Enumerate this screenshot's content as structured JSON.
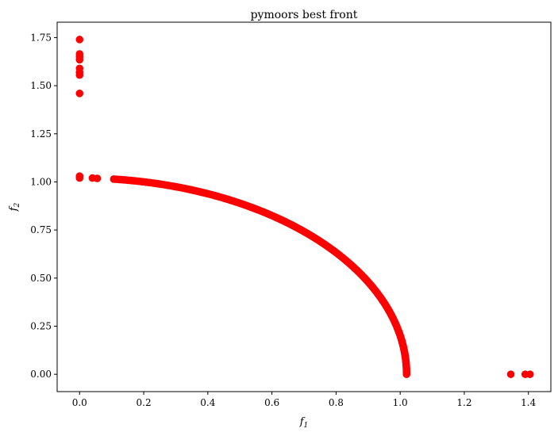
{
  "chart_data": {
    "type": "scatter",
    "title": "pymoors best front",
    "xlabel_main": "f",
    "xlabel_sub": "1",
    "ylabel_main": "f",
    "ylabel_sub": "2",
    "xlim": [
      -0.07,
      1.47
    ],
    "ylim": [
      -0.09,
      1.83
    ],
    "x_ticks": [
      0.0,
      0.2,
      0.4,
      0.6,
      0.8,
      1.0,
      1.2,
      1.4
    ],
    "x_tick_labels": [
      "0.0",
      "0.2",
      "0.4",
      "0.6",
      "0.8",
      "1.0",
      "1.2",
      "1.4"
    ],
    "y_ticks": [
      0.0,
      0.25,
      0.5,
      0.75,
      1.0,
      1.25,
      1.5,
      1.75
    ],
    "y_tick_labels": [
      "0.00",
      "0.25",
      "0.50",
      "0.75",
      "1.00",
      "1.25",
      "1.50",
      "1.75"
    ],
    "grid": false,
    "marker_color": "#ff0000",
    "outlier_points": [
      {
        "x": 0.0,
        "y": 1.74
      },
      {
        "x": 0.0,
        "y": 1.665
      },
      {
        "x": 0.0,
        "y": 1.65
      },
      {
        "x": 0.0,
        "y": 1.635
      },
      {
        "x": 0.0,
        "y": 1.59
      },
      {
        "x": 0.0,
        "y": 1.57
      },
      {
        "x": 0.0,
        "y": 1.555
      },
      {
        "x": 0.0,
        "y": 1.46
      },
      {
        "x": 0.0,
        "y": 1.03
      },
      {
        "x": 0.0,
        "y": 1.02
      },
      {
        "x": 0.04,
        "y": 1.02
      },
      {
        "x": 0.055,
        "y": 1.018
      },
      {
        "x": 1.345,
        "y": 0.0
      },
      {
        "x": 1.39,
        "y": 0.0
      },
      {
        "x": 1.405,
        "y": 0.0
      }
    ],
    "front_curve": {
      "shape": "quarter-circle",
      "radius": 1.02,
      "angle_from_deg": 0,
      "angle_to_deg": 84,
      "count": 260
    }
  }
}
